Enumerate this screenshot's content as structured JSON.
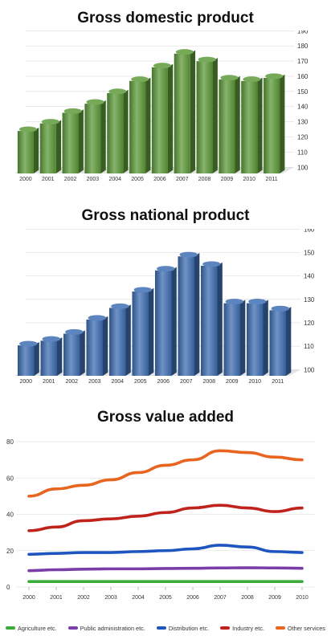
{
  "chart_data": [
    {
      "type": "bar",
      "title": "Gross domestic product",
      "categories": [
        "2000",
        "2001",
        "2002",
        "2003",
        "2004",
        "2005",
        "2006",
        "2007",
        "2008",
        "2009",
        "2010",
        "2011"
      ],
      "values": [
        128,
        133,
        140,
        146,
        153,
        161,
        170,
        179,
        174,
        162,
        161,
        163
      ],
      "ylim": [
        100,
        190
      ],
      "yticks": [
        100,
        110,
        120,
        130,
        140,
        150,
        160,
        170,
        180,
        190
      ],
      "color": "#5e9b3a"
    },
    {
      "type": "bar",
      "title": "Gross national product",
      "categories": [
        "2000",
        "2001",
        "2002",
        "2003",
        "2004",
        "2005",
        "2006",
        "2007",
        "2008",
        "2009",
        "2010",
        "2011"
      ],
      "values": [
        113,
        115,
        118,
        124,
        129,
        136,
        145,
        151,
        147,
        131,
        131,
        128
      ],
      "ylim": [
        100,
        160
      ],
      "yticks": [
        100,
        110,
        120,
        130,
        140,
        150,
        160
      ],
      "color": "#3f6fb4"
    },
    {
      "type": "line",
      "title": "Gross value added",
      "x": [
        "2000",
        "2001",
        "2002",
        "2003",
        "2004",
        "2005",
        "2006",
        "2007",
        "2008",
        "2009",
        "2010"
      ],
      "ylim": [
        0,
        80
      ],
      "yticks": [
        0,
        20,
        40,
        60,
        80
      ],
      "series": [
        {
          "name": "Agriculture etc.",
          "color": "#3cab3a",
          "values": [
            3,
            3,
            3,
            3,
            3,
            3,
            3,
            3,
            3,
            3,
            3
          ]
        },
        {
          "name": "Public administration etc.",
          "color": "#7a3ea8",
          "values": [
            9,
            9.5,
            9.8,
            10,
            10,
            10.2,
            10.3,
            10.5,
            10.6,
            10.5,
            10.3
          ]
        },
        {
          "name": "Distribution etc.",
          "color": "#1f55bf",
          "values": [
            18,
            18.5,
            19,
            19,
            19.5,
            20,
            21,
            23,
            22,
            19.5,
            19
          ]
        },
        {
          "name": "Industry etc.",
          "color": "#c0221c",
          "values": [
            31,
            33,
            36.5,
            37.5,
            39,
            41,
            43.5,
            45,
            43.5,
            41.5,
            43.5
          ]
        },
        {
          "name": "Other services",
          "color": "#e8641f",
          "values": [
            50,
            54,
            56,
            59,
            63,
            67,
            70,
            75,
            74,
            71.5,
            70
          ]
        }
      ]
    }
  ]
}
